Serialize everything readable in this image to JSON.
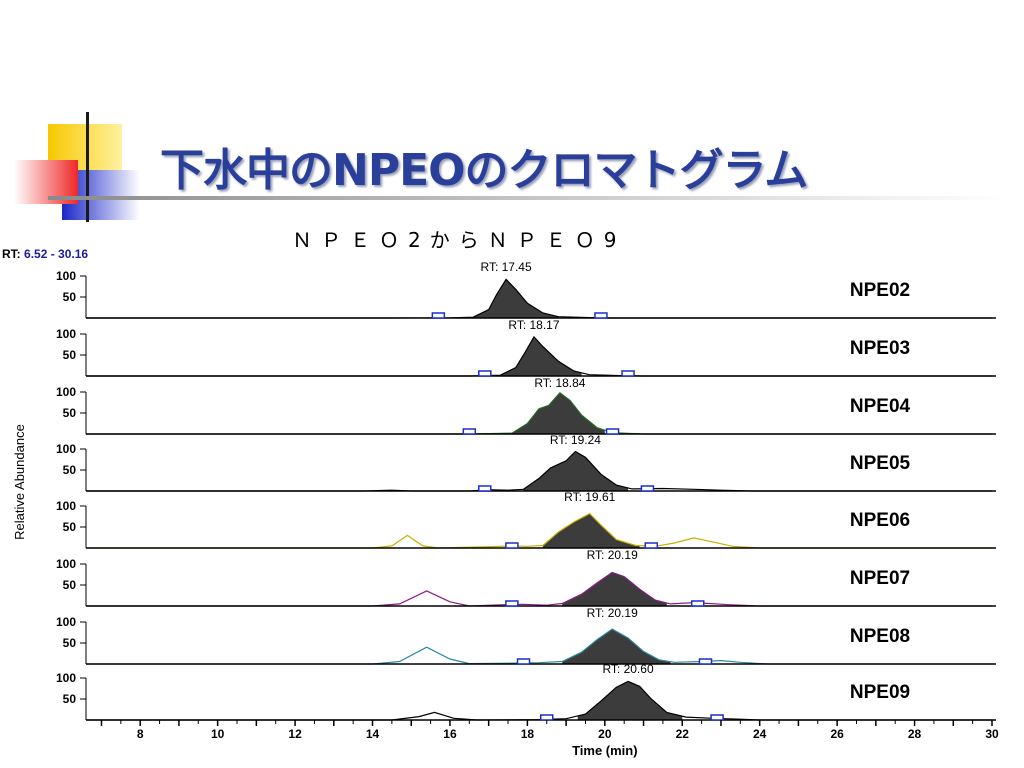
{
  "slide": {
    "title": "下水中のNPEOのクロマトグラム",
    "subtitle": "ＮＰＥＯ2からＮＰＥＯ9"
  },
  "colors": {
    "title": "#2a3f9a",
    "peak_fill": "#3c3c3c",
    "marker": "#1a2ecc",
    "deco_yellow": "#f5c400",
    "deco_red": "#f03030",
    "deco_blue": "#2030c8"
  },
  "chart_data": {
    "type": "area",
    "rt_range_label": "RT:",
    "rt_range_value": "6.52 - 30.16",
    "xlabel": "Time (min)",
    "ylabel": "Relative Abundance",
    "xlim": [
      6.6,
      30
    ],
    "ylim": [
      0,
      100
    ],
    "x_ticks": [
      8,
      10,
      12,
      14,
      16,
      18,
      20,
      22,
      24,
      26,
      28,
      30
    ],
    "y_ticks": [
      50,
      100
    ],
    "traces": [
      {
        "name": "NPE02",
        "rt_label": "RT: 17.45",
        "rt": 17.45,
        "baseline_color": "#000000",
        "fill_from": 16.6,
        "fill_to": 18.8,
        "points": [
          [
            6.6,
            0
          ],
          [
            14,
            0
          ],
          [
            16,
            0.5
          ],
          [
            16.6,
            2
          ],
          [
            17.0,
            20
          ],
          [
            17.2,
            55
          ],
          [
            17.45,
            92
          ],
          [
            17.7,
            68
          ],
          [
            18.0,
            35
          ],
          [
            18.4,
            12
          ],
          [
            18.8,
            3
          ],
          [
            19.6,
            1
          ],
          [
            20.2,
            0
          ],
          [
            30,
            0
          ]
        ],
        "markers": [
          15.7,
          19.9
        ]
      },
      {
        "name": "NPE03",
        "rt_label": "RT: 18.17",
        "rt": 18.17,
        "baseline_color": "#000000",
        "fill_from": 17.3,
        "fill_to": 19.4,
        "points": [
          [
            6.6,
            0
          ],
          [
            16.5,
            0
          ],
          [
            17.3,
            2
          ],
          [
            17.7,
            20
          ],
          [
            17.9,
            50
          ],
          [
            18.17,
            93
          ],
          [
            18.4,
            70
          ],
          [
            18.8,
            35
          ],
          [
            19.2,
            12
          ],
          [
            19.6,
            3
          ],
          [
            20.4,
            1
          ],
          [
            21,
            0
          ],
          [
            30,
            0
          ]
        ],
        "markers": [
          16.9,
          20.6
        ]
      },
      {
        "name": "NPE04",
        "rt_label": "RT: 18.84",
        "rt": 18.84,
        "baseline_color": "#1e6e1e",
        "fill_from": 17.6,
        "fill_to": 20.0,
        "points": [
          [
            6.6,
            0
          ],
          [
            16.5,
            0
          ],
          [
            17.6,
            2
          ],
          [
            18.0,
            25
          ],
          [
            18.3,
            60
          ],
          [
            18.55,
            68
          ],
          [
            18.84,
            98
          ],
          [
            19.1,
            80
          ],
          [
            19.4,
            45
          ],
          [
            19.8,
            15
          ],
          [
            20.2,
            3
          ],
          [
            21,
            0
          ],
          [
            30,
            0
          ]
        ],
        "markers": [
          16.5,
          20.2
        ]
      },
      {
        "name": "NPE05",
        "rt_label": "RT: 19.24",
        "rt": 19.24,
        "baseline_color": "#000000",
        "fill_from": 17.9,
        "fill_to": 20.6,
        "points": [
          [
            6.6,
            0
          ],
          [
            13.8,
            0
          ],
          [
            14.5,
            2
          ],
          [
            15,
            0
          ],
          [
            16.5,
            0
          ],
          [
            17.0,
            3
          ],
          [
            17.5,
            2
          ],
          [
            17.9,
            4
          ],
          [
            18.3,
            30
          ],
          [
            18.6,
            55
          ],
          [
            19.0,
            72
          ],
          [
            19.24,
            94
          ],
          [
            19.5,
            80
          ],
          [
            19.9,
            40
          ],
          [
            20.3,
            14
          ],
          [
            20.7,
            5
          ],
          [
            21.5,
            6
          ],
          [
            22.3,
            4
          ],
          [
            23.0,
            2
          ],
          [
            23.8,
            0
          ],
          [
            30,
            0
          ]
        ],
        "markers": [
          16.9,
          21.1
        ]
      },
      {
        "name": "NPE06",
        "rt_label": "RT: 19.61",
        "rt": 19.61,
        "baseline_color": "#c9b000",
        "fill_from": 18.4,
        "fill_to": 20.9,
        "points": [
          [
            6.6,
            0
          ],
          [
            14.0,
            0
          ],
          [
            14.5,
            5
          ],
          [
            14.9,
            30
          ],
          [
            15.3,
            5
          ],
          [
            15.7,
            0
          ],
          [
            17.0,
            3
          ],
          [
            17.6,
            5
          ],
          [
            18.0,
            4
          ],
          [
            18.4,
            6
          ],
          [
            18.8,
            38
          ],
          [
            19.2,
            62
          ],
          [
            19.61,
            82
          ],
          [
            19.9,
            55
          ],
          [
            20.3,
            20
          ],
          [
            20.8,
            6
          ],
          [
            21.3,
            4
          ],
          [
            21.8,
            12
          ],
          [
            22.3,
            24
          ],
          [
            22.8,
            14
          ],
          [
            23.3,
            4
          ],
          [
            24.0,
            0
          ],
          [
            30,
            0
          ]
        ],
        "markers": [
          17.6,
          21.2
        ]
      },
      {
        "name": "NPE07",
        "rt_label": "RT: 20.19",
        "rt": 20.19,
        "baseline_color": "#8a1a8a",
        "fill_from": 18.9,
        "fill_to": 21.6,
        "points": [
          [
            6.6,
            0
          ],
          [
            14.0,
            0
          ],
          [
            14.7,
            5
          ],
          [
            15.4,
            36
          ],
          [
            16.0,
            10
          ],
          [
            16.5,
            0
          ],
          [
            17.4,
            3
          ],
          [
            17.9,
            4
          ],
          [
            18.5,
            2
          ],
          [
            18.9,
            6
          ],
          [
            19.4,
            28
          ],
          [
            19.8,
            55
          ],
          [
            20.19,
            80
          ],
          [
            20.5,
            70
          ],
          [
            20.9,
            40
          ],
          [
            21.3,
            14
          ],
          [
            21.7,
            5
          ],
          [
            22.3,
            8
          ],
          [
            22.7,
            6
          ],
          [
            23.2,
            3
          ],
          [
            24.0,
            0
          ],
          [
            30,
            0
          ]
        ],
        "markers": [
          17.6,
          22.4
        ]
      },
      {
        "name": "NPE08",
        "rt_label": "RT: 20.19",
        "rt": 20.19,
        "baseline_color": "#2a8aa0",
        "fill_from": 18.9,
        "fill_to": 21.7,
        "points": [
          [
            6.6,
            0
          ],
          [
            14.0,
            0
          ],
          [
            14.7,
            6
          ],
          [
            15.4,
            40
          ],
          [
            16.0,
            12
          ],
          [
            16.5,
            1
          ],
          [
            17.5,
            2
          ],
          [
            18.3,
            3
          ],
          [
            18.9,
            6
          ],
          [
            19.4,
            28
          ],
          [
            19.8,
            58
          ],
          [
            20.19,
            83
          ],
          [
            20.6,
            62
          ],
          [
            21.0,
            30
          ],
          [
            21.4,
            10
          ],
          [
            21.8,
            4
          ],
          [
            22.5,
            6
          ],
          [
            23.0,
            8
          ],
          [
            23.5,
            4
          ],
          [
            24.2,
            0
          ],
          [
            30,
            0
          ]
        ],
        "markers": [
          17.9,
          22.6
        ]
      },
      {
        "name": "NPE09",
        "rt_label": "RT: 20.60",
        "rt": 20.6,
        "baseline_color": "#000000",
        "fill_from": 19.3,
        "fill_to": 22.0,
        "points": [
          [
            6.6,
            0
          ],
          [
            14.5,
            0
          ],
          [
            15.2,
            8
          ],
          [
            15.6,
            18
          ],
          [
            16.1,
            4
          ],
          [
            16.7,
            0
          ],
          [
            18.3,
            1
          ],
          [
            19.0,
            3
          ],
          [
            19.5,
            14
          ],
          [
            19.9,
            45
          ],
          [
            20.3,
            78
          ],
          [
            20.6,
            92
          ],
          [
            20.9,
            80
          ],
          [
            21.2,
            50
          ],
          [
            21.6,
            18
          ],
          [
            22.1,
            7
          ],
          [
            22.8,
            4
          ],
          [
            23.5,
            2
          ],
          [
            24.0,
            0
          ],
          [
            30,
            0
          ]
        ],
        "markers": [
          18.5,
          22.9
        ]
      }
    ]
  }
}
